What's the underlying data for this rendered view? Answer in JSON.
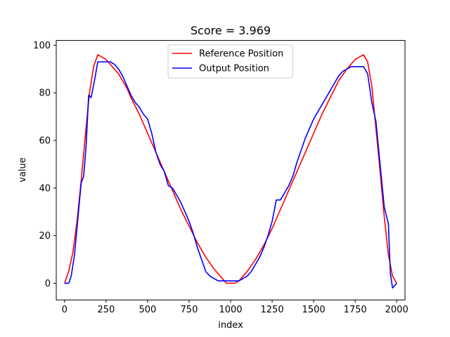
{
  "chart_data": {
    "type": "line",
    "title": "Score = 3.969",
    "xlabel": "index",
    "ylabel": "value",
    "xlim": [
      -50,
      2050
    ],
    "ylim": [
      -7,
      102
    ],
    "xticks": [
      0,
      250,
      500,
      750,
      1000,
      1250,
      1500,
      1750,
      2000
    ],
    "yticks": [
      0,
      20,
      40,
      60,
      80,
      100
    ],
    "grid": false,
    "legend": "upper-center",
    "series": [
      {
        "name": "Reference Position",
        "color": "#ff0000",
        "x": [
          0,
          25,
          50,
          75,
          100,
          125,
          150,
          175,
          200,
          225,
          250,
          275,
          300,
          325,
          350,
          375,
          400,
          450,
          500,
          550,
          600,
          650,
          700,
          750,
          800,
          850,
          900,
          950,
          975,
          1000,
          1025,
          1050,
          1075,
          1100,
          1150,
          1200,
          1250,
          1300,
          1350,
          1400,
          1450,
          1500,
          1550,
          1600,
          1650,
          1700,
          1750,
          1775,
          1800,
          1825,
          1850,
          1875,
          1900,
          1925,
          1950,
          1975,
          2000
        ],
        "y": [
          0,
          5,
          13,
          26,
          43,
          62,
          80,
          91,
          96,
          95,
          94,
          92,
          90,
          88,
          85,
          82,
          78,
          71,
          63,
          55,
          47,
          39,
          31,
          24,
          17,
          11,
          6,
          2,
          0,
          0,
          0,
          1,
          3,
          5,
          10,
          16,
          23,
          31,
          39,
          47,
          55,
          63,
          71,
          78,
          85,
          90,
          94,
          95,
          96,
          93,
          83,
          65,
          47,
          28,
          12,
          3,
          0
        ]
      },
      {
        "name": "Output Position",
        "color": "#0000ff",
        "x": [
          0,
          25,
          40,
          60,
          80,
          100,
          115,
          130,
          145,
          160,
          180,
          200,
          225,
          250,
          275,
          300,
          325,
          350,
          375,
          400,
          425,
          450,
          475,
          500,
          525,
          550,
          575,
          600,
          625,
          650,
          675,
          700,
          725,
          750,
          775,
          800,
          825,
          850,
          875,
          900,
          925,
          950,
          1000,
          1050,
          1075,
          1100,
          1125,
          1150,
          1175,
          1200,
          1225,
          1250,
          1275,
          1300,
          1325,
          1350,
          1375,
          1400,
          1425,
          1450,
          1475,
          1500,
          1525,
          1550,
          1575,
          1600,
          1625,
          1650,
          1675,
          1700,
          1725,
          1750,
          1775,
          1800,
          1825,
          1850,
          1875,
          1900,
          1925,
          1950,
          1962,
          1975,
          2000
        ],
        "y": [
          0,
          0,
          3,
          12,
          27,
          42,
          45,
          58,
          79,
          78,
          85,
          93,
          93,
          93,
          93,
          92,
          90,
          87,
          83,
          79,
          76,
          74,
          71,
          69,
          63,
          55,
          50,
          47,
          41,
          40,
          37,
          34,
          30,
          26,
          21,
          15,
          10,
          5,
          3,
          2,
          1,
          1,
          1,
          1,
          2,
          3,
          5,
          8,
          11,
          15,
          20,
          26,
          35,
          35,
          38,
          41,
          45,
          51,
          56,
          61,
          65,
          69,
          72,
          75,
          78,
          81,
          84,
          87,
          89,
          90,
          91,
          91,
          91,
          91,
          88,
          76,
          68,
          50,
          32,
          25,
          4,
          -2,
          0
        ]
      }
    ]
  }
}
